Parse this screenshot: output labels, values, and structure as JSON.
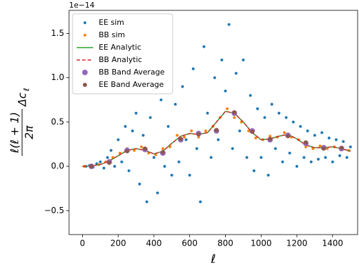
{
  "chart_data": {
    "type": "scatter",
    "offset_text": "1e−14",
    "x_label": "ℓ",
    "y_label": {
      "numerator": "ℓ(ℓ + 1)",
      "denominator": "2π",
      "factor": "Δc",
      "subscript": "ℓ"
    },
    "xlim": [
      -75,
      1540
    ],
    "ylim": [
      -0.77,
      1.76
    ],
    "xticks": [
      0,
      200,
      400,
      600,
      800,
      1000,
      1200,
      1400
    ],
    "yticks": [
      {
        "value": -0.5,
        "label": "−0.5"
      },
      {
        "value": 0,
        "label": "0.0"
      },
      0.5,
      {
        "value": 1,
        "label": "1.0"
      },
      1.5
    ],
    "grid": false,
    "legend": "upper left",
    "series": [
      {
        "name": "EE sim",
        "kind": "points",
        "color": "#1f77b4",
        "marker_size": 2,
        "x": [
          20,
          40,
          60,
          80,
          100,
          120,
          140,
          160,
          180,
          200,
          220,
          240,
          260,
          280,
          300,
          320,
          340,
          360,
          380,
          400,
          420,
          440,
          460,
          480,
          500,
          520,
          540,
          560,
          580,
          600,
          620,
          640,
          660,
          680,
          700,
          720,
          740,
          760,
          780,
          800,
          820,
          840,
          860,
          880,
          900,
          920,
          940,
          960,
          980,
          1000,
          1020,
          1040,
          1060,
          1080,
          1100,
          1120,
          1140,
          1160,
          1180,
          1200,
          1220,
          1240,
          1260,
          1280,
          1300,
          1320,
          1340,
          1360,
          1380,
          1400,
          1420,
          1440,
          1460,
          1480,
          1500
        ],
        "values": [
          0.0,
          0.01,
          -0.01,
          0.03,
          0.05,
          -0.02,
          0.1,
          0.18,
          0.0,
          0.3,
          0.05,
          0.45,
          -0.05,
          0.4,
          0.6,
          -0.2,
          0.35,
          -0.4,
          0.55,
          0.1,
          -0.3,
          0.75,
          0.0,
          0.45,
          -0.1,
          0.7,
          0.05,
          0.9,
          0.3,
          -0.1,
          1.1,
          0.2,
          -0.4,
          1.35,
          0.6,
          0.1,
          1.0,
          0.3,
          1.2,
          0.85,
          1.6,
          0.2,
          1.05,
          0.4,
          1.2,
          0.1,
          0.8,
          -0.05,
          0.65,
          0.1,
          0.55,
          -0.1,
          0.7,
          0.2,
          0.6,
          0.05,
          0.55,
          0.15,
          0.5,
          0.0,
          0.45,
          0.1,
          0.4,
          0.05,
          0.35,
          0.08,
          0.38,
          0.1,
          0.32,
          0.05,
          0.3,
          0.12,
          0.28,
          0.1,
          0.22
        ]
      },
      {
        "name": "BB sim",
        "kind": "points",
        "color": "#ff7f0e",
        "marker_size": 2,
        "x": [
          10,
          50,
          90,
          130,
          170,
          210,
          250,
          290,
          330,
          370,
          410,
          450,
          490,
          530,
          570,
          610,
          650,
          690,
          730,
          770,
          810,
          850,
          890,
          930,
          970,
          1010,
          1050,
          1090,
          1130,
          1170,
          1210,
          1250,
          1290,
          1330,
          1370,
          1410,
          1450,
          1490
        ],
        "values": [
          0,
          0.01,
          0.02,
          0.05,
          0.1,
          0.15,
          0.2,
          0.18,
          0.22,
          0.15,
          0.13,
          0.2,
          0.22,
          0.35,
          0.33,
          0.4,
          0.33,
          0.4,
          0.45,
          0.55,
          0.65,
          0.55,
          0.5,
          0.4,
          0.32,
          0.3,
          0.34,
          0.33,
          0.38,
          0.33,
          0.3,
          0.22,
          0.2,
          0.23,
          0.2,
          0.22,
          0.19,
          0.18
        ]
      },
      {
        "name": "EE Analytic",
        "kind": "line",
        "color": "#2ca02c",
        "dashed": false,
        "x": [
          0,
          50,
          100,
          150,
          200,
          250,
          300,
          350,
          400,
          450,
          500,
          550,
          600,
          650,
          700,
          750,
          800,
          850,
          900,
          950,
          1000,
          1050,
          1100,
          1150,
          1200,
          1250,
          1300,
          1350,
          1400,
          1450,
          1500
        ],
        "values": [
          0,
          0.005,
          0.02,
          0.06,
          0.12,
          0.18,
          0.2,
          0.18,
          0.14,
          0.17,
          0.26,
          0.34,
          0.37,
          0.36,
          0.38,
          0.5,
          0.62,
          0.6,
          0.5,
          0.38,
          0.3,
          0.31,
          0.34,
          0.36,
          0.31,
          0.24,
          0.21,
          0.21,
          0.22,
          0.2,
          0.17
        ]
      },
      {
        "name": "BB Analytic",
        "kind": "line",
        "color": "#d62728",
        "dashed": true,
        "x": [
          0,
          50,
          100,
          150,
          200,
          250,
          300,
          350,
          400,
          450,
          500,
          550,
          600,
          650,
          700,
          750,
          800,
          850,
          900,
          950,
          1000,
          1050,
          1100,
          1150,
          1200,
          1250,
          1300,
          1350,
          1400,
          1450,
          1500
        ],
        "values": [
          0,
          0.005,
          0.02,
          0.06,
          0.12,
          0.18,
          0.2,
          0.18,
          0.14,
          0.17,
          0.26,
          0.34,
          0.37,
          0.36,
          0.38,
          0.5,
          0.62,
          0.6,
          0.5,
          0.38,
          0.3,
          0.31,
          0.34,
          0.36,
          0.31,
          0.24,
          0.21,
          0.21,
          0.22,
          0.2,
          0.17
        ]
      },
      {
        "name": "BB Band Average",
        "kind": "points",
        "color": "#9467bd",
        "marker_size": 4,
        "x": [
          50,
          150,
          250,
          350,
          450,
          550,
          650,
          750,
          850,
          950,
          1050,
          1150,
          1250,
          1350,
          1450
        ],
        "values": [
          0.0,
          0.05,
          0.18,
          0.19,
          0.15,
          0.3,
          0.37,
          0.4,
          0.6,
          0.4,
          0.3,
          0.35,
          0.26,
          0.21,
          0.2
        ]
      },
      {
        "name": "EE Band Average",
        "kind": "points",
        "color": "#8c564b",
        "marker_size": 3,
        "x": [
          50,
          150,
          250,
          350,
          450,
          550,
          650,
          750,
          850,
          950,
          1050,
          1150,
          1250,
          1350,
          1450
        ],
        "values": [
          0.0,
          0.04,
          0.17,
          0.2,
          0.16,
          0.31,
          0.36,
          0.41,
          0.61,
          0.39,
          0.31,
          0.34,
          0.27,
          0.2,
          0.21
        ]
      }
    ]
  }
}
